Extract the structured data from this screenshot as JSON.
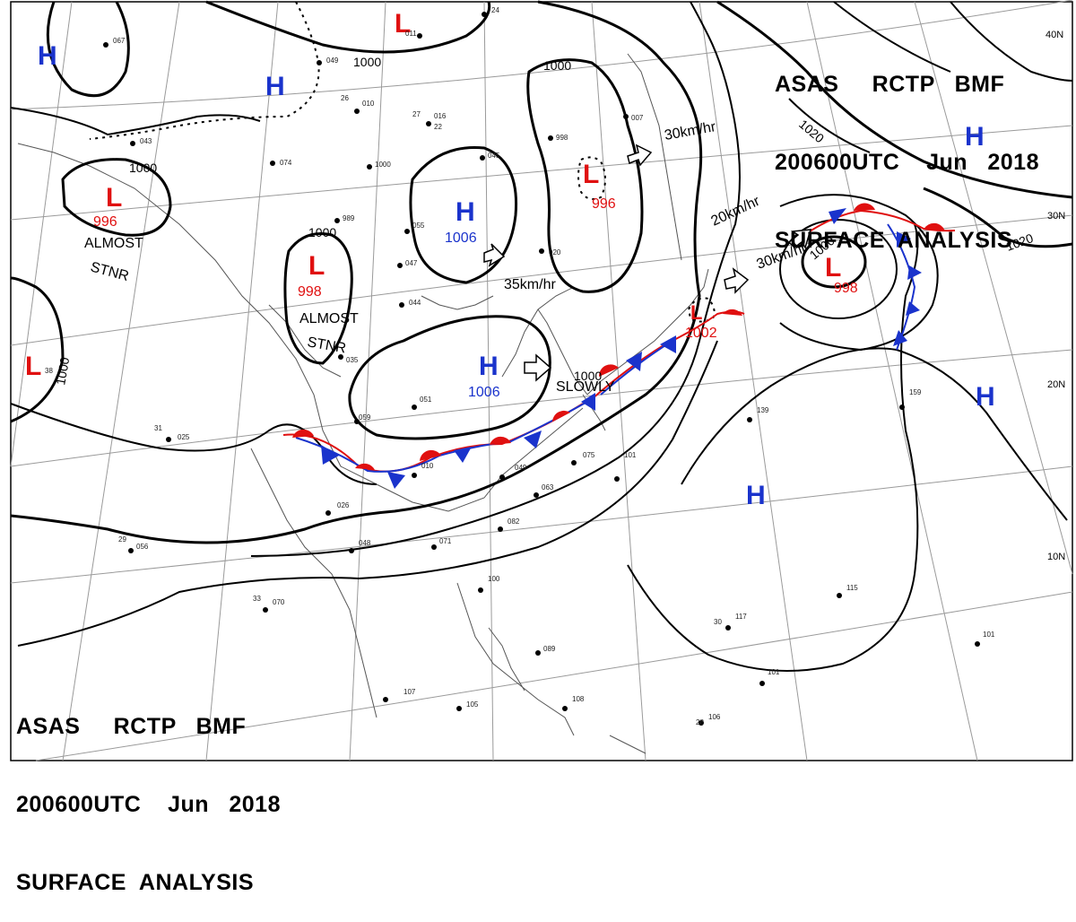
{
  "header_top": {
    "line1": "ASAS     RCTP   BMF",
    "line2": "200600UTC    Jun   2018",
    "line3": "SURFACE  ANALYSIS"
  },
  "header_bottom": {
    "line1": "ASAS     RCTP   BMF",
    "line2": "200600UTC    Jun   2018",
    "line3": "SURFACE  ANALYSIS"
  },
  "colors": {
    "high": "#1a33cc",
    "low": "#e01010",
    "cold_front": "#1a33cc",
    "warm_front": "#e01010"
  },
  "pressure_centers": [
    {
      "type": "H",
      "value": ""
    },
    {
      "type": "H",
      "value": ""
    },
    {
      "type": "L",
      "value": "996"
    },
    {
      "type": "L",
      "value": "998"
    },
    {
      "type": "L",
      "value": ""
    },
    {
      "type": "H",
      "value": "1006"
    },
    {
      "type": "H",
      "value": "1006"
    },
    {
      "type": "L",
      "value": "996"
    },
    {
      "type": "L",
      "value": "1002"
    },
    {
      "type": "L",
      "value": "998"
    },
    {
      "type": "H",
      "value": ""
    },
    {
      "type": "H",
      "value": ""
    },
    {
      "type": "H",
      "value": ""
    },
    {
      "type": "L",
      "value": ""
    }
  ],
  "isobar_labels": [
    "1000",
    "1000",
    "1000",
    "1000",
    "1000",
    "1000",
    "1020",
    "1020",
    "1000"
  ],
  "motion_labels": {
    "stnr1": [
      "ALMOST",
      "STNR"
    ],
    "stnr2": [
      "ALMOST",
      "STNR"
    ],
    "slowly": "SLOWLY",
    "speed1": "35km/hr",
    "speed2": "30km/hr",
    "speed3": "20km/hr",
    "speed4": "30km/hr"
  },
  "latitude_labels": [
    "40N",
    "30N",
    "20N",
    "10N"
  ],
  "station_labels": [
    "24",
    "011",
    "067",
    "049",
    "043",
    "26",
    "010",
    "016",
    "22",
    "074",
    "27",
    "1000",
    "045",
    "998",
    "007",
    "020",
    "989",
    "055",
    "047",
    "044",
    "035",
    "025",
    "051",
    "059",
    "010",
    "049",
    "063",
    "075",
    "101",
    "026",
    "048",
    "056",
    "070",
    "071",
    "082",
    "100",
    "089",
    "107",
    "105",
    "108",
    "106",
    "115",
    "117",
    "101",
    "101",
    "139",
    "159",
    "38",
    "31",
    "29",
    "33",
    "30",
    "28"
  ]
}
